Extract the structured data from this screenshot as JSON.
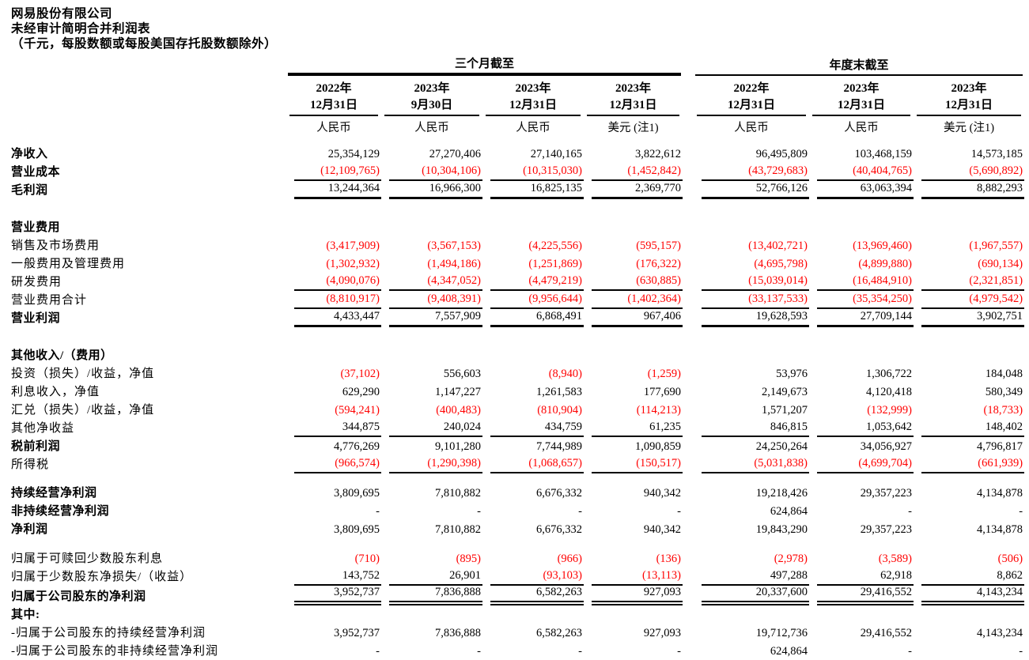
{
  "page": {
    "title1": "网易股份有限公司",
    "title2": "未经审计简明合并利润表",
    "title3": "（千元，每股数额或每股美国存托股数额除外）"
  },
  "colors": {
    "negative": "#ff0000",
    "text": "#000000",
    "background": "#ffffff"
  },
  "table": {
    "col_groups": [
      {
        "label": "三个月截至",
        "span": 4
      },
      {
        "label": "年度末截至",
        "span": 3
      }
    ],
    "columns": [
      {
        "year": "2022年",
        "date": "12月31日",
        "currency": "人民币"
      },
      {
        "year": "2023年",
        "date": "9月30日",
        "currency": "人民币"
      },
      {
        "year": "2023年",
        "date": "12月31日",
        "currency": "人民币"
      },
      {
        "year": "2023年",
        "date": "12月31日",
        "currency": "美元 (注1)"
      },
      {
        "year": "2022年",
        "date": "12月31日",
        "currency": "人民币"
      },
      {
        "year": "2023年",
        "date": "12月31日",
        "currency": "人民币"
      },
      {
        "year": "2023年",
        "date": "12月31日",
        "currency": "美元 (注1)"
      }
    ],
    "rows": [
      {
        "label": "净收入",
        "bold": true,
        "values": [
          "25,354,129",
          "27,270,406",
          "27,140,165",
          "3,822,612",
          "96,495,809",
          "103,468,159",
          "14,573,185"
        ]
      },
      {
        "label": "营业成本",
        "bold": true,
        "rule": "thin",
        "values": [
          "(12,109,765)",
          "(10,304,106)",
          "(10,315,030)",
          "(1,452,842)",
          "(43,729,683)",
          "(40,404,765)",
          "(5,690,892)"
        ]
      },
      {
        "label": "毛利润",
        "bold": true,
        "rule": "thick",
        "values": [
          "13,244,364",
          "16,966,300",
          "16,825,135",
          "2,369,770",
          "52,766,126",
          "63,063,394",
          "8,882,293"
        ]
      },
      {
        "spacer": 24
      },
      {
        "label": "营业费用",
        "bold": true
      },
      {
        "label": "销售及市场费用",
        "values": [
          "(3,417,909)",
          "(3,567,153)",
          "(4,225,556)",
          "(595,157)",
          "(13,402,721)",
          "(13,969,460)",
          "(1,967,557)"
        ]
      },
      {
        "label": "一般费用及管理费用",
        "values": [
          "(1,302,932)",
          "(1,494,186)",
          "(1,251,869)",
          "(176,322)",
          "(4,695,798)",
          "(4,899,880)",
          "(690,134)"
        ]
      },
      {
        "label": "研发费用",
        "rule": "thin",
        "values": [
          "(4,090,076)",
          "(4,347,052)",
          "(4,479,219)",
          "(630,885)",
          "(15,039,014)",
          "(16,484,910)",
          "(2,321,851)"
        ]
      },
      {
        "label": "营业费用合计",
        "rule": "thin",
        "values": [
          "(8,810,917)",
          "(9,408,391)",
          "(9,956,644)",
          "(1,402,364)",
          "(33,137,533)",
          "(35,354,250)",
          "(4,979,542)"
        ]
      },
      {
        "label": "营业利润",
        "bold": true,
        "rule": "thick",
        "values": [
          "4,433,447",
          "7,557,909",
          "6,868,491",
          "967,406",
          "19,628,593",
          "27,709,144",
          "3,902,751"
        ]
      },
      {
        "spacer": 24
      },
      {
        "label": "其他收入/（费用）",
        "bold": true
      },
      {
        "label": "投资（损失）/收益，净值",
        "values": [
          "(37,102)",
          "556,603",
          "(8,940)",
          "(1,259)",
          "53,976",
          "1,306,722",
          "184,048"
        ]
      },
      {
        "label": "利息收入，净值",
        "values": [
          "629,290",
          "1,147,227",
          "1,261,583",
          "177,690",
          "2,149,673",
          "4,120,418",
          "580,349"
        ]
      },
      {
        "label": "汇兑（损失）/收益，净值",
        "values": [
          "(594,241)",
          "(400,483)",
          "(810,904)",
          "(114,213)",
          "1,571,207",
          "(132,999)",
          "(18,733)"
        ]
      },
      {
        "label": "其他净收益",
        "rule": "thin",
        "values": [
          "344,875",
          "240,024",
          "434,759",
          "61,235",
          "846,815",
          "1,053,642",
          "148,402"
        ]
      },
      {
        "label": "税前利润",
        "bold": true,
        "values": [
          "4,776,269",
          "9,101,280",
          "7,744,989",
          "1,090,859",
          "24,250,264",
          "34,056,927",
          "4,796,817"
        ]
      },
      {
        "label": "所得税",
        "rule": "thin",
        "values": [
          "(966,574)",
          "(1,290,398)",
          "(1,068,657)",
          "(150,517)",
          "(5,031,838)",
          "(4,699,704)",
          "(661,939)"
        ]
      },
      {
        "spacer": 13
      },
      {
        "label": "持续经营净利润",
        "bold": true,
        "values": [
          "3,809,695",
          "7,810,882",
          "6,676,332",
          "940,342",
          "19,218,426",
          "29,357,223",
          "4,134,878"
        ]
      },
      {
        "label": "非持续经营净利润",
        "bold": true,
        "values": [
          "-",
          "-",
          "-",
          "-",
          "624,864",
          "-",
          "-"
        ]
      },
      {
        "label": "净利润",
        "bold": true,
        "values": [
          "3,809,695",
          "7,810,882",
          "6,676,332",
          "940,342",
          "19,843,290",
          "29,357,223",
          "4,134,878"
        ]
      },
      {
        "spacer": 14
      },
      {
        "label": "归属于可赎回少数股东利息",
        "values": [
          "(710)",
          "(895)",
          "(966)",
          "(136)",
          "(2,978)",
          "(3,589)",
          "(506)"
        ]
      },
      {
        "label": "归属于少数股东净损失/（收益）",
        "rule": "thin",
        "values": [
          "143,752",
          "26,901",
          "(93,103)",
          "(13,113)",
          "497,288",
          "62,918",
          "8,862"
        ]
      },
      {
        "label": "归属于公司股东的净利润",
        "bold": true,
        "rule": "double",
        "values": [
          "3,952,737",
          "7,836,888",
          "6,582,263",
          "927,093",
          "20,337,600",
          "29,416,552",
          "4,143,234"
        ]
      },
      {
        "label": "其中:",
        "bold": true
      },
      {
        "label": "-归属于公司股东的持续经营净利润",
        "values": [
          "3,952,737",
          "7,836,888",
          "6,582,263",
          "927,093",
          "19,712,736",
          "29,416,552",
          "4,143,234"
        ]
      },
      {
        "label": "-归属于公司股东的非持续经营净利润",
        "values": [
          "-",
          "-",
          "-",
          "-",
          "624,864",
          "-",
          "-"
        ]
      }
    ]
  }
}
